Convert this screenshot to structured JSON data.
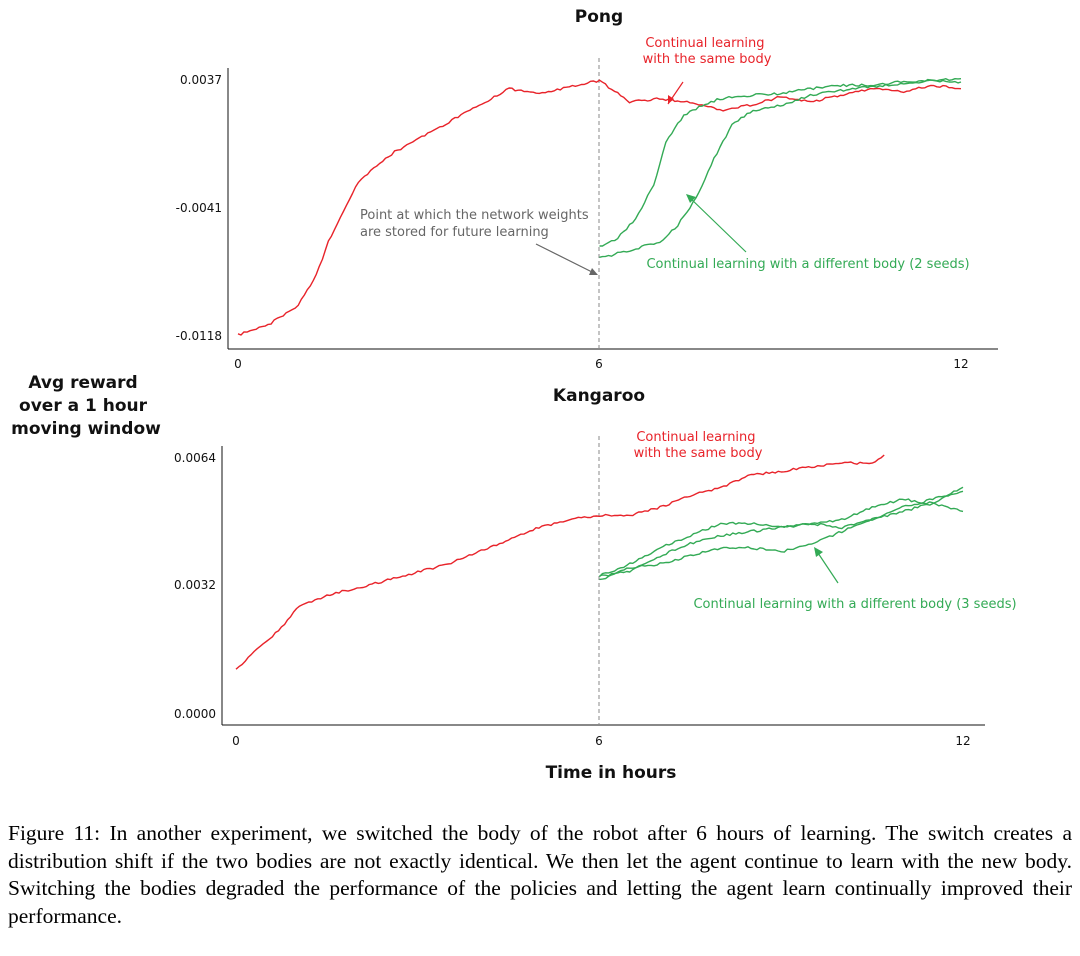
{
  "chart_data": [
    {
      "type": "line",
      "title": "Pong",
      "x_range": [
        0,
        12
      ],
      "x_ticks": [
        "0",
        "6",
        "12"
      ],
      "y_ticks": [
        "0.0037",
        "-0.0041",
        "-0.0118"
      ],
      "ylim": [
        -0.0118,
        0.0037
      ],
      "series": [
        {
          "name": "Continual learning with the same body",
          "color": "#e8232a",
          "x": [
            0,
            0.5,
            1.0,
            1.3,
            1.5,
            1.8,
            2.0,
            2.3,
            2.6,
            3.0,
            3.5,
            4.0,
            4.5,
            5.0,
            5.5,
            6.0,
            6.5,
            7.0,
            7.5,
            8.0,
            8.5,
            9.0,
            9.5,
            10.0,
            10.5,
            11.0,
            11.5,
            12.0
          ],
          "y": [
            -0.0118,
            -0.0112,
            -0.01,
            -0.0082,
            -0.0062,
            -0.004,
            -0.0026,
            -0.0016,
            -0.0008,
            0.0,
            0.001,
            0.002,
            0.003,
            0.0027,
            0.0031,
            0.0035,
            0.0022,
            0.0024,
            0.0022,
            0.0017,
            0.002,
            0.0025,
            0.0022,
            0.0026,
            0.003,
            0.0028,
            0.0032,
            0.003
          ]
        },
        {
          "name": "Continual learning with a different body (seed 1)",
          "color": "#33aa55",
          "x": [
            6.0,
            6.3,
            6.6,
            6.9,
            7.1,
            7.4,
            7.7,
            8.0,
            8.5,
            9.0,
            9.5,
            10.0,
            10.5,
            11.0,
            11.5,
            12.0
          ],
          "y": [
            -0.0065,
            -0.006,
            -0.0048,
            -0.0028,
            -0.0002,
            0.0014,
            0.002,
            0.0024,
            0.0026,
            0.0027,
            0.003,
            0.0032,
            0.0032,
            0.0034,
            0.0035,
            0.0036
          ]
        },
        {
          "name": "Continual learning with a different body (seed 2)",
          "color": "#33aa55",
          "x": [
            6.0,
            6.3,
            6.6,
            7.0,
            7.3,
            7.6,
            7.9,
            8.2,
            8.5,
            9.0,
            9.5,
            10.0,
            10.5,
            11.0,
            11.5,
            12.0
          ],
          "y": [
            -0.0072,
            -0.0069,
            -0.0066,
            -0.0062,
            -0.0052,
            -0.0036,
            -0.0012,
            0.0008,
            0.0016,
            0.002,
            0.0026,
            0.0029,
            0.0031,
            0.0033,
            0.0035,
            0.0034
          ]
        }
      ],
      "annotations": [
        {
          "lines": [
            "Continual learning",
            "with the same body"
          ],
          "color": "#e8232a"
        },
        {
          "lines": [
            "Point at which the network weights",
            "are stored for future learning"
          ],
          "color": "#666666"
        },
        {
          "lines": [
            "Continual learning with a different body (2 seeds)"
          ],
          "color": "#33aa55"
        }
      ]
    },
    {
      "type": "line",
      "title": "Kangaroo",
      "x_range": [
        0,
        12
      ],
      "x_ticks": [
        "0",
        "6",
        "12"
      ],
      "y_ticks": [
        "0.0064",
        "0.0032",
        "0.0000"
      ],
      "ylim": [
        0.0,
        0.0064
      ],
      "series": [
        {
          "name": "Continual learning with the same body",
          "color": "#e8232a",
          "x": [
            0,
            0.3,
            0.6,
            0.8,
            1.0,
            1.3,
            1.7,
            2.0,
            2.5,
            3.0,
            3.5,
            4.0,
            4.5,
            5.0,
            5.5,
            6.0,
            6.5,
            7.0,
            7.5,
            8.0,
            8.5,
            9.0,
            9.5,
            10.0,
            10.5,
            10.7
          ],
          "y": [
            0.0011,
            0.0015,
            0.0019,
            0.0022,
            0.0026,
            0.0028,
            0.003,
            0.0031,
            0.0033,
            0.0035,
            0.0037,
            0.004,
            0.0043,
            0.0046,
            0.0048,
            0.0049,
            0.0049,
            0.0051,
            0.0054,
            0.0056,
            0.0059,
            0.006,
            0.0061,
            0.0062,
            0.0062,
            0.0064
          ]
        },
        {
          "name": "Continual learning with a different body (seed 1)",
          "color": "#33aa55",
          "x": [
            6.0,
            6.5,
            7.0,
            7.5,
            8.0,
            8.5,
            9.0,
            9.5,
            10.0,
            10.5,
            11.0,
            11.5,
            12.0
          ],
          "y": [
            0.0034,
            0.0037,
            0.0041,
            0.0044,
            0.0047,
            0.0047,
            0.0046,
            0.0047,
            0.0046,
            0.0048,
            0.0051,
            0.0053,
            0.0055
          ]
        },
        {
          "name": "Continual learning with a different body (seed 2)",
          "color": "#33aa55",
          "x": [
            6.0,
            6.5,
            7.0,
            7.5,
            8.0,
            8.5,
            9.0,
            9.5,
            10.0,
            10.5,
            11.0,
            11.5,
            12.0
          ],
          "y": [
            0.0034,
            0.0035,
            0.0039,
            0.0042,
            0.0044,
            0.0045,
            0.0046,
            0.0047,
            0.0048,
            0.0051,
            0.0053,
            0.0052,
            0.005
          ]
        },
        {
          "name": "Continual learning with a different body (seed 3)",
          "color": "#33aa55",
          "x": [
            6.0,
            6.5,
            7.0,
            7.5,
            8.0,
            8.5,
            9.0,
            9.5,
            10.0,
            10.5,
            11.0,
            11.5,
            12.0
          ],
          "y": [
            0.0033,
            0.0036,
            0.0037,
            0.0039,
            0.0041,
            0.0041,
            0.004,
            0.0042,
            0.0045,
            0.0048,
            0.005,
            0.0052,
            0.0056
          ]
        }
      ],
      "annotations": [
        {
          "lines": [
            "Continual learning",
            "with the same body"
          ],
          "color": "#e8232a"
        },
        {
          "lines": [
            "Continual learning with a different body (3 seeds)"
          ],
          "color": "#33aa55"
        }
      ]
    }
  ],
  "shared_ylabel": [
    "Avg reward",
    "over a 1 hour",
    "moving window"
  ],
  "shared_xlabel": "Time in hours",
  "caption": "Figure 11: In another experiment, we switched the body of the robot after 6 hours of learning. The switch creates a distribution shift if the two bodies are not exactly identical. We then let the agent continue to learn with the new body. Switching the bodies degraded the performance of the policies and letting the agent learn continually improved their performance."
}
